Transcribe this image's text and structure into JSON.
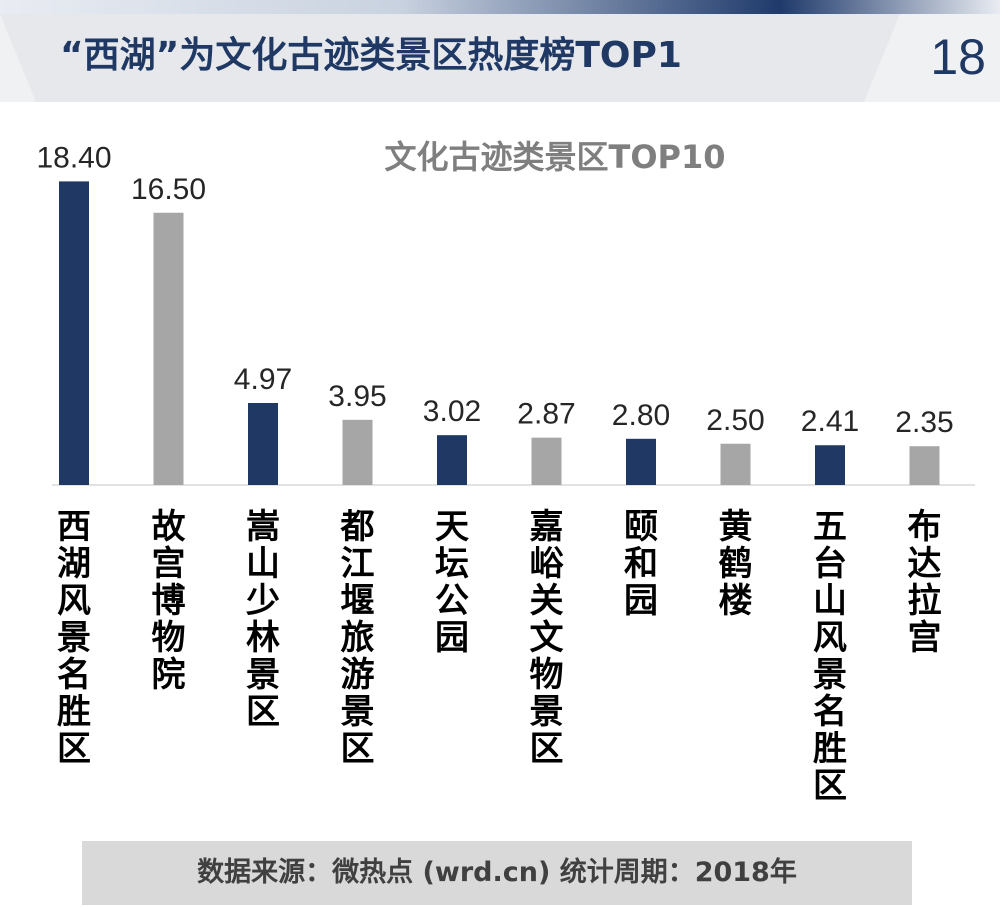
{
  "header": {
    "title": "“西湖”为文化古迹类景区热度榜TOP1",
    "page_number": "18"
  },
  "footer": {
    "source": "数据来源：微热点 (wrd.cn)   统计周期：2018年"
  },
  "colors": {
    "highlight": "#203864",
    "default": "#a6a6a6",
    "title_text": "#1f3864",
    "chart_title": "#7f7f7f"
  },
  "chart_data": {
    "type": "bar",
    "title": "文化古迹类景区TOP10",
    "xlabel": "",
    "ylabel": "",
    "ylim": [
      0,
      20
    ],
    "categories": [
      "西湖风景名胜区",
      "故宫博物院",
      "嵩山少林景区",
      "都江堰旅游景区",
      "天坛公园",
      "嘉峪关文物景区",
      "颐和园",
      "黄鹤楼",
      "五台山风景名胜区",
      "布达拉宫"
    ],
    "values": [
      18.4,
      16.5,
      4.97,
      3.95,
      3.02,
      2.87,
      2.8,
      2.5,
      2.41,
      2.35
    ],
    "value_labels": [
      "18.40",
      "16.50",
      "4.97",
      "3.95",
      "3.02",
      "2.87",
      "2.80",
      "2.50",
      "2.41",
      "2.35"
    ],
    "bar_colors": [
      "#203864",
      "#a6a6a6",
      "#203864",
      "#a6a6a6",
      "#203864",
      "#a6a6a6",
      "#203864",
      "#a6a6a6",
      "#203864",
      "#a6a6a6"
    ]
  }
}
